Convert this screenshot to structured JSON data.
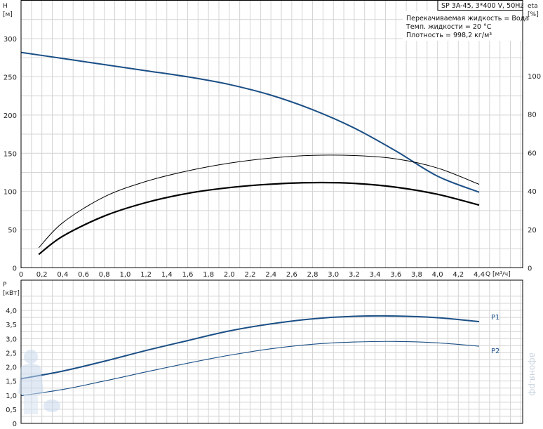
{
  "product": "SP 3A-45, 3*400 V, 50Hz",
  "fluid_info": [
    "Перекачиваемая жидкость = Вода",
    "Темп. жидкости = 20 °C",
    "Плотность = 998,2 кг/м³"
  ],
  "watermark": "афоня.рф",
  "colors": {
    "head_curve": "#1b4f86",
    "power_curve": "#1b4f86",
    "grid": "#d4d4d4"
  },
  "chart_data": [
    {
      "type": "line",
      "x_label": "Q [м³/ч]",
      "y_label": [
        "H",
        "[м]"
      ],
      "y2_label": [
        "eta",
        "[%]"
      ],
      "xlim": [
        0,
        4.4
      ],
      "ylim": [
        0,
        300
      ],
      "y2lim": [
        0,
        120
      ],
      "x_ticks": [
        "0",
        "0,2",
        "0,4",
        "0,6",
        "0,8",
        "1,0",
        "1,2",
        "1,4",
        "1,6",
        "1,8",
        "2,0",
        "2,2",
        "2,4",
        "2,6",
        "2,8",
        "3,0",
        "3,2",
        "3,4",
        "3,6",
        "3,8",
        "4,0",
        "4,2",
        "4,4"
      ],
      "y_ticks": [
        "0",
        "50",
        "100",
        "150",
        "200",
        "250",
        "300"
      ],
      "y2_ticks": [
        "0",
        "20",
        "40",
        "60",
        "80",
        "100"
      ],
      "grid": true,
      "series": [
        {
          "id": "head",
          "axis": "y",
          "color": "#1b4f86",
          "width": 2,
          "x": [
            0,
            0.4,
            0.8,
            1.2,
            1.6,
            2.0,
            2.4,
            2.8,
            3.2,
            3.6,
            4.0,
            4.4
          ],
          "y": [
            282,
            274,
            266,
            258,
            250,
            240,
            226,
            207,
            183,
            153,
            120,
            99
          ]
        },
        {
          "id": "eta_line",
          "axis": "y2",
          "color": "#000000",
          "width": 1,
          "x": [
            0.17,
            0.4,
            0.8,
            1.2,
            1.6,
            2.0,
            2.4,
            2.8,
            3.2,
            3.6,
            4.0,
            4.4
          ],
          "y": [
            10.5,
            23.5,
            37,
            45,
            50.5,
            54.5,
            57.2,
            58.6,
            58.5,
            56.8,
            52,
            43.5
          ]
        },
        {
          "id": "eta_bold",
          "axis": "y2",
          "color": "#000000",
          "width": 2.2,
          "x": [
            0.17,
            0.4,
            0.8,
            1.2,
            1.6,
            2.0,
            2.4,
            2.8,
            3.2,
            3.6,
            4.0,
            4.4
          ],
          "y": [
            7,
            16.5,
            27,
            34,
            38.8,
            41.8,
            43.6,
            44.4,
            44,
            42,
            38.3,
            32.7
          ]
        }
      ]
    },
    {
      "type": "line",
      "x_label": "",
      "y_label": [
        "P",
        "[кВт]"
      ],
      "xlim": [
        0,
        4.4
      ],
      "ylim": [
        0,
        4.5
      ],
      "y_ticks": [
        "0",
        "0,5",
        "1,0",
        "1,5",
        "2,0",
        "2,5",
        "3,0",
        "3,5",
        "4,0"
      ],
      "grid": true,
      "series": [
        {
          "id": "P1",
          "name": "P1",
          "color": "#1b4f86",
          "width": 2,
          "x": [
            0,
            0.4,
            0.8,
            1.2,
            1.6,
            2.0,
            2.4,
            2.8,
            3.2,
            3.6,
            4.0,
            4.4
          ],
          "y": [
            1.58,
            1.85,
            2.2,
            2.58,
            2.93,
            3.27,
            3.52,
            3.7,
            3.79,
            3.8,
            3.74,
            3.6
          ]
        },
        {
          "id": "P2",
          "name": "P2",
          "color": "#1b4f86",
          "width": 1.1,
          "x": [
            0,
            0.4,
            0.8,
            1.2,
            1.6,
            2.0,
            2.4,
            2.8,
            3.2,
            3.6,
            4.0,
            4.4
          ],
          "y": [
            0.98,
            1.2,
            1.5,
            1.82,
            2.13,
            2.41,
            2.64,
            2.8,
            2.88,
            2.9,
            2.85,
            2.73
          ]
        }
      ]
    }
  ]
}
